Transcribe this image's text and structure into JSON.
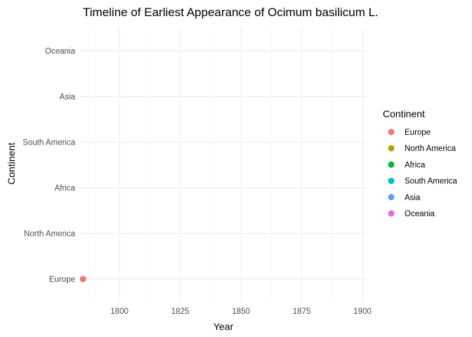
{
  "chart_data": {
    "type": "scatter",
    "title": "Timeline of Earliest Appearance of Ocimum basilicum L.",
    "xlabel": "Year",
    "ylabel": "Continent",
    "xlim": [
      1783.5,
      1902
    ],
    "x_ticks": [
      1800,
      1825,
      1850,
      1875,
      1900
    ],
    "categories": [
      "Europe",
      "North America",
      "Africa",
      "South America",
      "Asia",
      "Oceania"
    ],
    "grid": true,
    "legend": {
      "title": "Continent",
      "position": "right",
      "entries": [
        {
          "name": "Europe",
          "color": "#F8766D"
        },
        {
          "name": "North America",
          "color": "#B79F00"
        },
        {
          "name": "Africa",
          "color": "#00BA38"
        },
        {
          "name": "South America",
          "color": "#00BFC4"
        },
        {
          "name": "Asia",
          "color": "#619CFF"
        },
        {
          "name": "Oceania",
          "color": "#F564E3"
        }
      ]
    },
    "points": [
      {
        "x": 1785,
        "y": "Europe",
        "color": "#F8766D"
      }
    ]
  }
}
